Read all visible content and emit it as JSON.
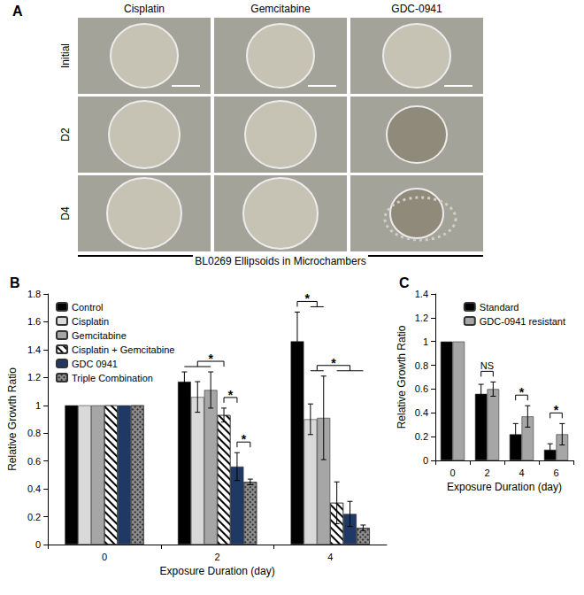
{
  "image_panel": {
    "label": "A",
    "columns": [
      "Cisplatin",
      "Gemcitabine",
      "GDC-0941"
    ],
    "rows": [
      "Initial",
      "D2",
      "D4"
    ],
    "caption": "BL0269 Ellipsoids in Microchambers"
  },
  "chart_data": [
    {
      "type": "bar",
      "title": "B",
      "x_label": "Exposure Duration (day)",
      "y_label": "Relative Growth Ratio",
      "categories": [
        "0",
        "2",
        "4"
      ],
      "series": [
        {
          "name": "Control",
          "color": "#000000",
          "values": [
            1,
            1.17,
            1.46
          ],
          "errors": [
            0,
            0.07,
            0.21
          ]
        },
        {
          "name": "Cisplatin",
          "color": "#d9d9d9",
          "values": [
            1,
            1.06,
            0.9
          ],
          "errors": [
            0,
            0.11,
            0.11
          ]
        },
        {
          "name": "Gemcitabine",
          "color": "#a6a6a6",
          "values": [
            1,
            1.11,
            0.91
          ],
          "errors": [
            0,
            0.13,
            0.3
          ]
        },
        {
          "name": "Cisplatin + Gemcitabine",
          "color": "#ffffff",
          "marker": "hatch",
          "values": [
            1,
            0.93,
            0.3
          ],
          "errors": [
            0,
            0.05,
            0.15
          ]
        },
        {
          "name": "GDC 0941",
          "color": "#1f3864",
          "values": [
            1,
            0.56,
            0.22
          ],
          "errors": [
            0,
            0.1,
            0.09
          ]
        },
        {
          "name": "Triple Combination",
          "color": "#8c8c8c",
          "marker": "crosshatch",
          "values": [
            1,
            0.45,
            0.12
          ],
          "errors": [
            0,
            0.02,
            0.02
          ]
        }
      ],
      "ylim": [
        0,
        1.8
      ],
      "yticks": [
        0,
        0.2,
        0.4,
        0.6,
        0.8,
        1,
        1.2,
        1.4,
        1.6,
        1.8
      ],
      "grid": false,
      "legend": "upper left",
      "annotations": [
        {
          "text": "*",
          "category": "2",
          "from": [
            "Control",
            "Cisplatin",
            "Gemcitabine"
          ],
          "to": [
            "Cisplatin + Gemcitabine"
          ]
        },
        {
          "text": "*",
          "category": "2",
          "from": [
            "Cisplatin + Gemcitabine"
          ],
          "to": [
            "GDC 0941"
          ]
        },
        {
          "text": "*",
          "category": "2",
          "from": [
            "GDC 0941"
          ],
          "to": [
            "Triple Combination"
          ]
        },
        {
          "text": "*",
          "category": "4",
          "from": [
            "Control"
          ],
          "to": [
            "Cisplatin",
            "Gemcitabine"
          ]
        },
        {
          "text": "*",
          "category": "4",
          "from": [
            "Cisplatin",
            "Gemcitabine"
          ],
          "to": [
            "Cisplatin + Gemcitabine",
            "GDC 0941",
            "Triple Combination"
          ]
        }
      ]
    },
    {
      "type": "bar",
      "title": "C",
      "x_label": "Exposure Duration (day)",
      "y_label": "Relative Growth Ratio",
      "categories": [
        "0",
        "2",
        "4",
        "6"
      ],
      "series": [
        {
          "name": "Standard",
          "color": "#000000",
          "values": [
            1,
            0.56,
            0.22,
            0.09
          ],
          "errors": [
            0,
            0.08,
            0.09,
            0.05
          ]
        },
        {
          "name": "GDC-0941 resistant",
          "color": "#a6a6a6",
          "values": [
            1,
            0.6,
            0.37,
            0.22
          ],
          "errors": [
            0,
            0.06,
            0.09,
            0.09
          ]
        }
      ],
      "ylim": [
        0,
        1.4
      ],
      "yticks": [
        0,
        0.2,
        0.4,
        0.6,
        0.8,
        1,
        1.2,
        1.4
      ],
      "grid": false,
      "legend": "upper right",
      "annotations": [
        {
          "text": "NS",
          "category": "2",
          "from": [
            "Standard"
          ],
          "to": [
            "GDC-0941 resistant"
          ]
        },
        {
          "text": "*",
          "category": "4",
          "from": [
            "Standard"
          ],
          "to": [
            "GDC-0941 resistant"
          ]
        },
        {
          "text": "*",
          "category": "6",
          "from": [
            "Standard"
          ],
          "to": [
            "GDC-0941 resistant"
          ]
        }
      ]
    }
  ]
}
